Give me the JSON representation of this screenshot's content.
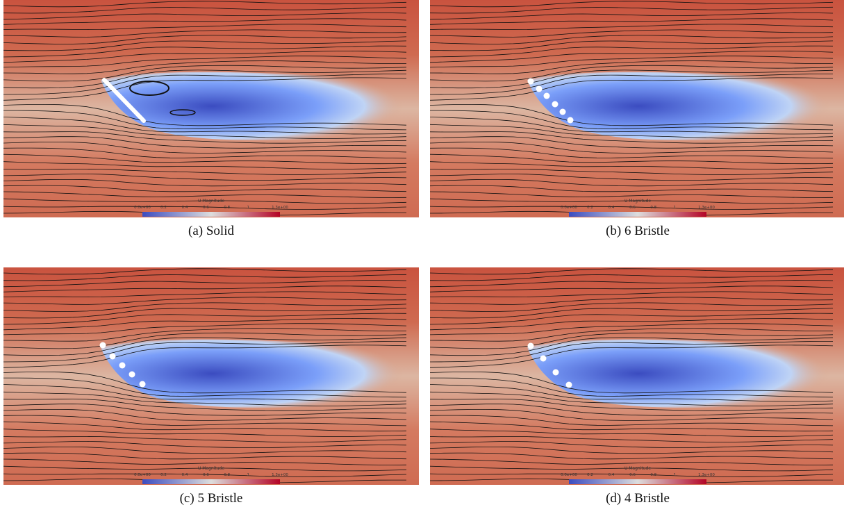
{
  "panels": [
    {
      "caption": "(a) Solid",
      "colorbar": {
        "title": "U Magnitude",
        "ticks": [
          "0.0e+00",
          "0.2",
          "0.4",
          "0.6",
          "0.8",
          "1",
          "1.3e+00"
        ]
      }
    },
    {
      "caption": "(b) 6 Bristle",
      "colorbar": {
        "title": "U Magnitude",
        "ticks": [
          "0.0e+00",
          "0.2",
          "0.4",
          "0.6",
          "0.8",
          "1",
          "1.3e+00"
        ]
      }
    },
    {
      "caption": "(c) 5 Bristle",
      "colorbar": {
        "title": "U Magnitude",
        "ticks": [
          "0.0e+00",
          "0.2",
          "0.4",
          "0.6",
          "0.8",
          "1",
          "1.3e+00"
        ]
      }
    },
    {
      "caption": "(d) 4 Bristle",
      "colorbar": {
        "title": "U Magnitude",
        "ticks": [
          "0.0e+00",
          "0.2",
          "0.4",
          "0.6",
          "0.8",
          "1",
          "1.3e+00"
        ]
      }
    }
  ]
}
